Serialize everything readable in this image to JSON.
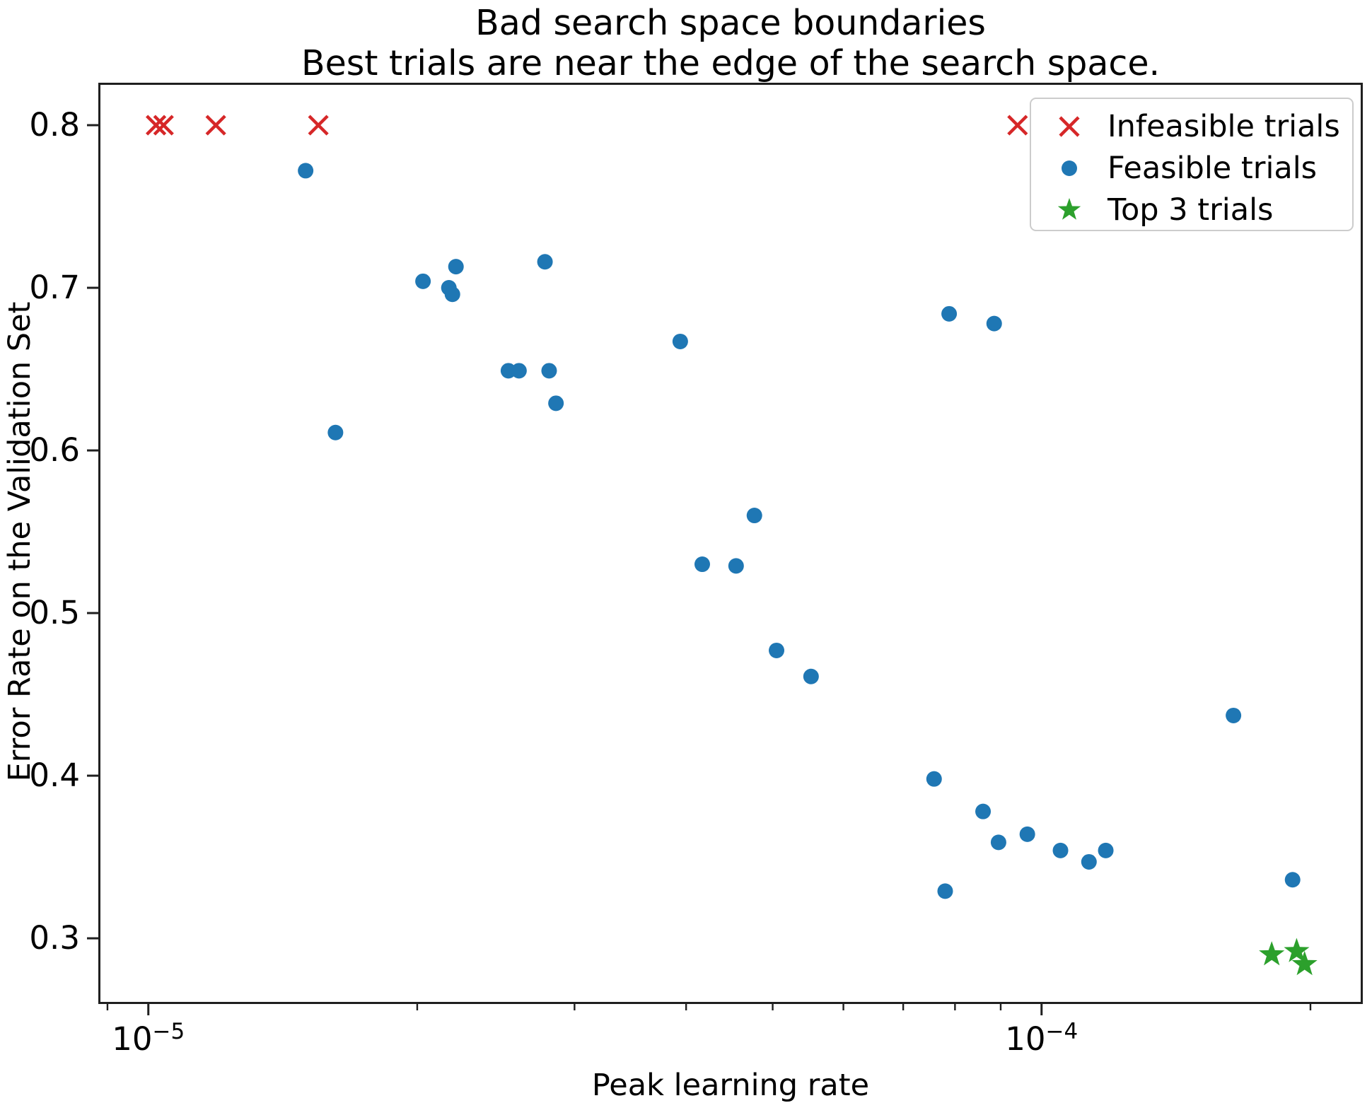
{
  "title": {
    "line1": "Bad search space boundaries",
    "line2": "Best trials are near the edge of the search space."
  },
  "chart_data": {
    "type": "scatter",
    "title": "Bad search space boundaries\nBest trials are near the edge of the search space.",
    "xlabel": "Peak learning rate",
    "ylabel": "Error Rate on the Validation Set",
    "x_scale": "log",
    "y_scale": "linear",
    "xlim": [
      8.79e-06,
      0.0002289
    ],
    "ylim": [
      0.2596,
      0.8261
    ],
    "grid": false,
    "legend_position": "upper right",
    "xticks": [
      {
        "base": "10",
        "exp": "−5",
        "value": 1e-05
      },
      {
        "base": "10",
        "exp": "−4",
        "value": 0.0001
      }
    ],
    "yticks": [
      "0.3",
      "0.4",
      "0.5",
      "0.6",
      "0.7",
      "0.8"
    ],
    "series": [
      {
        "name": "Infeasible trials",
        "marker": "x",
        "color": "#d62728",
        "points": [
          [
            1.02e-05,
            0.8
          ],
          [
            1.04e-05,
            0.8
          ],
          [
            1.19e-05,
            0.8
          ],
          [
            1.55e-05,
            0.8
          ],
          [
            9.4e-05,
            0.8
          ]
        ]
      },
      {
        "name": "Feasible trials",
        "marker": "circle",
        "color": "#1f77b4",
        "points": [
          [
            1.5e-05,
            0.772
          ],
          [
            1.62e-05,
            0.611
          ],
          [
            2.03e-05,
            0.704
          ],
          [
            2.17e-05,
            0.7
          ],
          [
            2.19e-05,
            0.696
          ],
          [
            2.21e-05,
            0.713
          ],
          [
            2.53e-05,
            0.649
          ],
          [
            2.6e-05,
            0.649
          ],
          [
            2.78e-05,
            0.716
          ],
          [
            2.81e-05,
            0.649
          ],
          [
            2.86e-05,
            0.629
          ],
          [
            3.94e-05,
            0.667
          ],
          [
            4.17e-05,
            0.53
          ],
          [
            4.55e-05,
            0.529
          ],
          [
            4.77e-05,
            0.56
          ],
          [
            5.05e-05,
            0.477
          ],
          [
            5.52e-05,
            0.461
          ],
          [
            7.58e-05,
            0.398
          ],
          [
            7.8e-05,
            0.329
          ],
          [
            7.88e-05,
            0.684
          ],
          [
            8.6e-05,
            0.378
          ],
          [
            8.85e-05,
            0.678
          ],
          [
            8.95e-05,
            0.359
          ],
          [
            9.64e-05,
            0.364
          ],
          [
            0.000105,
            0.354
          ],
          [
            0.000113,
            0.347
          ],
          [
            0.000118,
            0.354
          ],
          [
            0.000164,
            0.437
          ],
          [
            0.000191,
            0.336
          ]
        ]
      },
      {
        "name": "Top 3 trials",
        "marker": "star",
        "color": "#2ca02c",
        "points": [
          [
            0.000181,
            0.29
          ],
          [
            0.000193,
            0.292
          ],
          [
            0.000197,
            0.284
          ]
        ]
      }
    ]
  }
}
